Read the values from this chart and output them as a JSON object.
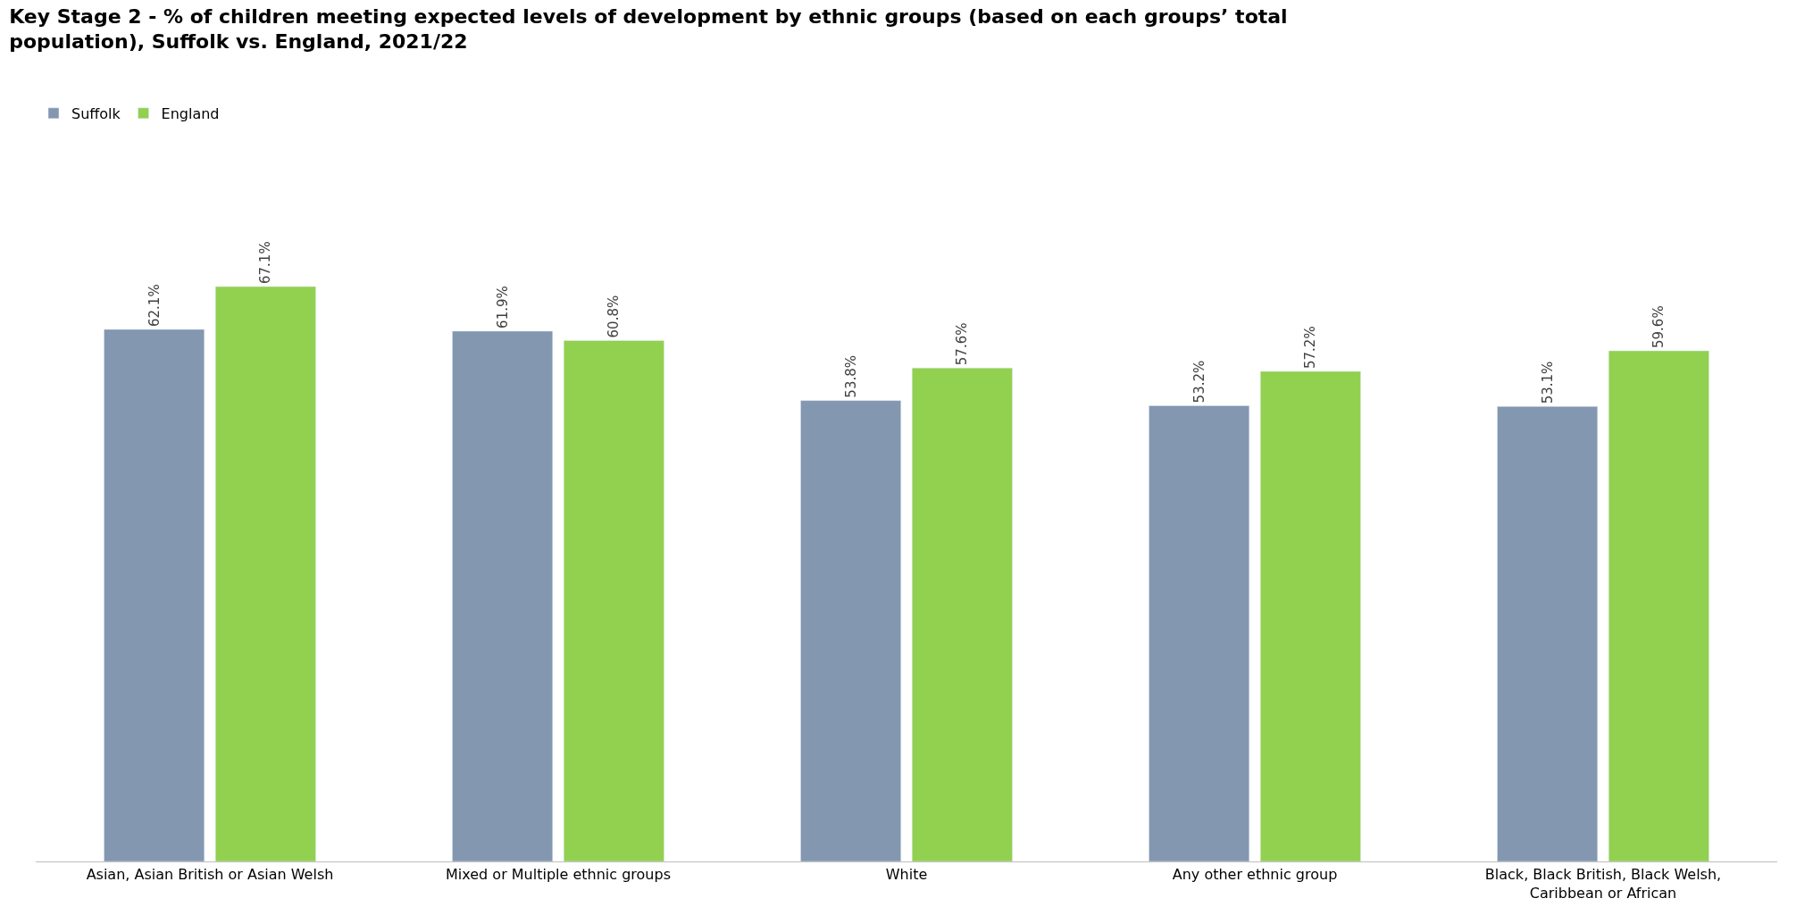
{
  "chart_data": {
    "type": "bar",
    "title": "Key Stage 2 - % of children meeting expected levels of development by ethnic groups (based on each groups’ total population), Suffolk vs. England, 2021/22",
    "categories": [
      "Asian, Asian British or Asian Welsh",
      "Mixed or Multiple ethnic groups",
      "White",
      "Any other ethnic group",
      "Black, Black British, Black Welsh, Caribbean or African"
    ],
    "series": [
      {
        "name": "Suffolk",
        "color": "#8497b0",
        "values": [
          62.1,
          61.9,
          53.8,
          53.2,
          53.1
        ],
        "value_labels": [
          "62.1%",
          "61.9%",
          "53.8%",
          "53.2%",
          "53.1%"
        ]
      },
      {
        "name": "England",
        "color": "#92d050",
        "values": [
          67.1,
          60.8,
          57.6,
          57.2,
          59.6
        ],
        "value_labels": [
          "67.1%",
          "60.8%",
          "57.6%",
          "57.2%",
          "59.6%"
        ]
      }
    ],
    "legend": "top left"
  }
}
